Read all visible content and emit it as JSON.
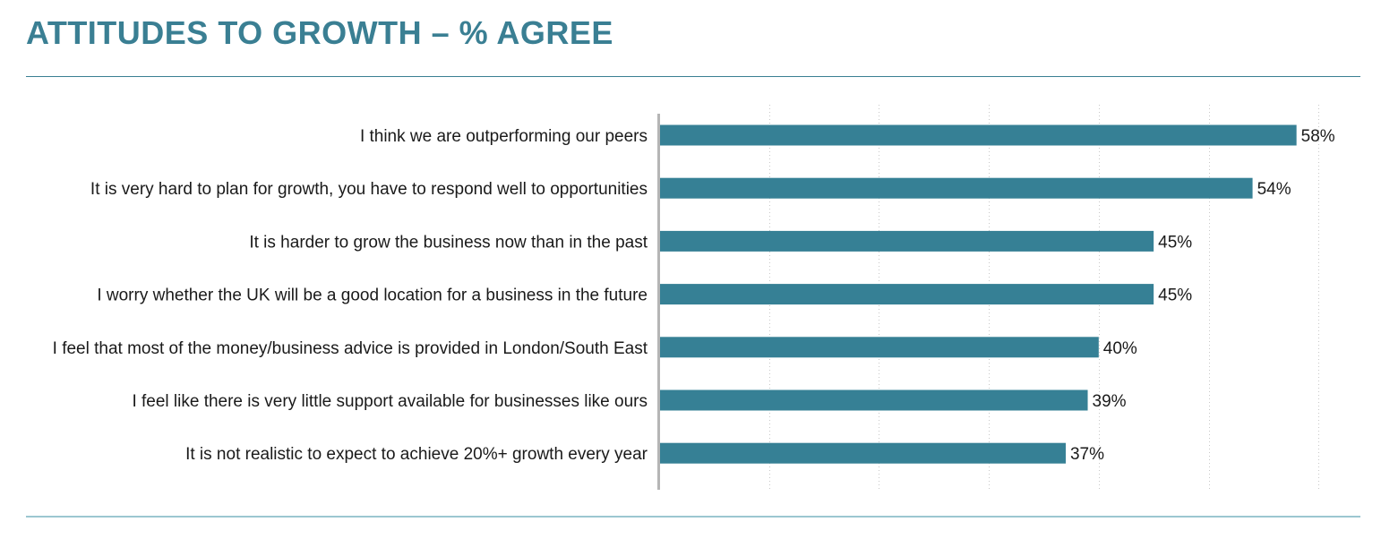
{
  "header": {
    "title": "ATTITUDES TO GROWTH – % AGREE"
  },
  "colors": {
    "accent": "#3a7f93",
    "bar": "#368095",
    "axis": "#b5b5b5",
    "grid": "#c8c8c8",
    "rule_bottom": "#9cc7d1",
    "text": "#1a1a1a"
  },
  "chart_data": {
    "type": "bar",
    "orientation": "horizontal",
    "title": "ATTITUDES TO GROWTH – % AGREE",
    "categories": [
      "I think we are outperforming our peers",
      "It is very hard to plan for growth, you have to respond well to opportunities",
      "It is harder to grow the business now than in the past",
      "I worry whether the UK will be a good location for a business in the future",
      "I feel that most of the money/business advice is provided in London/South East",
      "I feel like there is very little support available for businesses like ours",
      "It is not realistic to expect to achieve 20%+ growth every year"
    ],
    "values": [
      58,
      54,
      45,
      45,
      40,
      39,
      37
    ],
    "value_labels": [
      "58%",
      "54%",
      "45%",
      "45%",
      "40%",
      "39%",
      "37%"
    ],
    "xlim": [
      0,
      60
    ],
    "grid": true,
    "legend": "none",
    "xlabel": "",
    "ylabel": ""
  }
}
